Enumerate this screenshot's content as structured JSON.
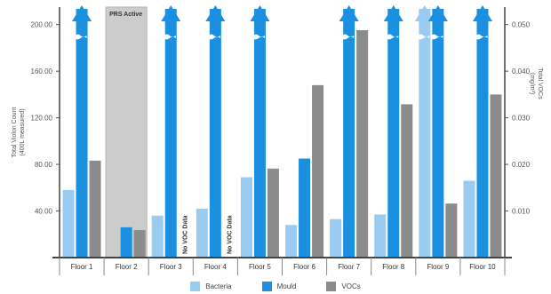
{
  "chart_data": {
    "type": "bar",
    "title": "",
    "categories": [
      "Floor 1",
      "Floor 2",
      "Floor 3",
      "Floor 4",
      "Floor 5",
      "Floor 6",
      "Floor 7",
      "Floor 8",
      "Floor 9",
      "Floor 10"
    ],
    "series": [
      {
        "name": "Bacteria",
        "axis": "left",
        "color": "#99ccf0",
        "values": [
          58,
          0,
          36,
          42,
          69,
          28,
          33,
          37,
          215,
          66
        ],
        "overflow": [
          false,
          false,
          false,
          false,
          false,
          false,
          false,
          false,
          true,
          false
        ]
      },
      {
        "name": "Mould",
        "axis": "left",
        "color": "#1b8fe0",
        "values": [
          215,
          26,
          215,
          215,
          215,
          85,
          215,
          215,
          215,
          215
        ],
        "overflow": [
          true,
          false,
          true,
          true,
          true,
          false,
          true,
          true,
          true,
          true
        ]
      },
      {
        "name": "VOCs",
        "axis": "right",
        "color": "#8c8c8c",
        "values": [
          0.0208,
          0.0059,
          null,
          null,
          0.0191,
          0.037,
          0.0488,
          0.0329,
          0.0116,
          0.035
        ]
      }
    ],
    "ylabel_left": "Total Violon Count",
    "ylabel_left_sub": "(400L measured)",
    "ylabel_right": "Total VOCs",
    "ylabel_right_sub": "(mg/m³)",
    "left_ticks": [
      "40.00",
      "80.00",
      "120.00",
      "160.00",
      "200.00"
    ],
    "left_tick_values": [
      40,
      80,
      120,
      160,
      200
    ],
    "right_ticks": [
      "0.010",
      "0.020",
      "0.030",
      "0.040",
      "0.050"
    ],
    "right_tick_values": [
      0.01,
      0.02,
      0.03,
      0.04,
      0.05
    ],
    "ylim_left": [
      0,
      215
    ],
    "ylim_right": [
      0,
      0.05375
    ],
    "grid": false,
    "legend_position": "bottom",
    "annotations": [
      {
        "text": "PRS Active",
        "category": "Floor 2",
        "kind": "shaded-band"
      },
      {
        "text": "No VOC Data",
        "category": "Floor 3",
        "kind": "vertical-label"
      },
      {
        "text": "No VOC Data",
        "category": "Floor 4",
        "kind": "vertical-label"
      }
    ]
  }
}
